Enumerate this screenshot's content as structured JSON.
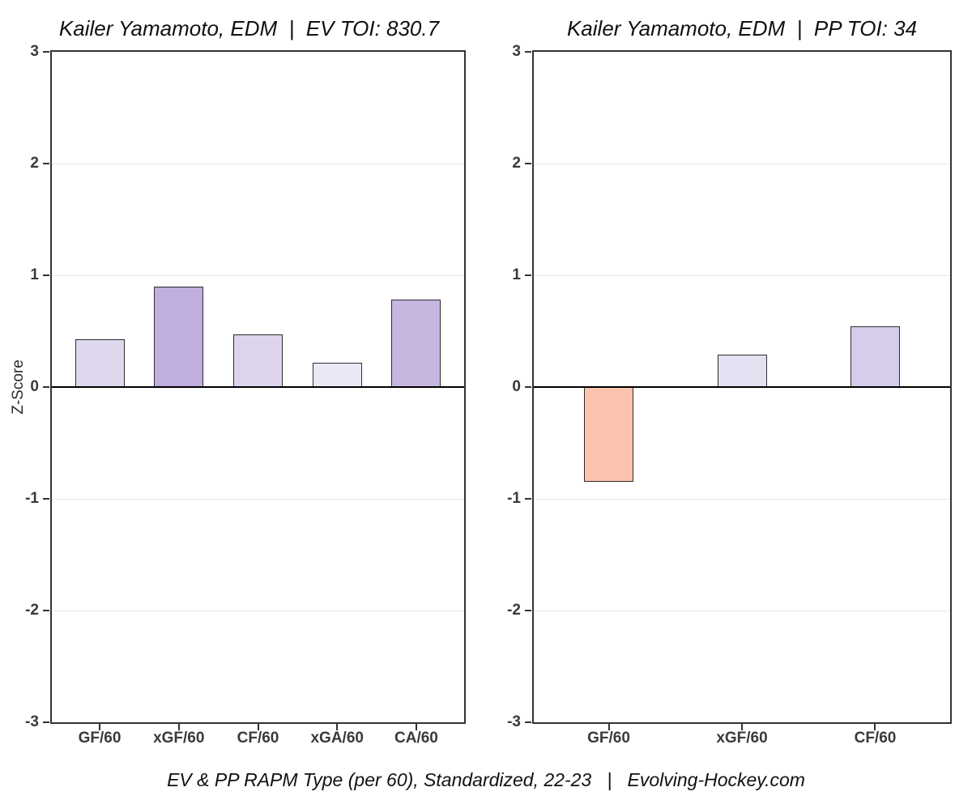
{
  "figure": {
    "ylabel": "Z-Score",
    "caption": "EV & PP RAPM Type (per 60), Standardized, 22-23   |   Evolving-Hockey.com",
    "background_color": "#ffffff",
    "panel_border_color": "#333333",
    "grid_color": "#e7e7e7",
    "zero_line_color": "#000000",
    "axis_text_color": "#3a3a3a"
  },
  "chart_data": [
    {
      "type": "bar",
      "title": "Kailer Yamamoto, EDM  |  EV TOI: 830.7",
      "categories": [
        "GF/60",
        "xGF/60",
        "CF/60",
        "xGA/60",
        "CA/60"
      ],
      "values": [
        0.43,
        0.9,
        0.47,
        0.22,
        0.78
      ],
      "bar_colors": [
        "#ded7ed",
        "#bfaede",
        "#ddd4ec",
        "#ebe7f4",
        "#c7b7e0"
      ],
      "ylabel": "Z-Score",
      "xlabel": "",
      "ylim": [
        -3,
        3
      ],
      "yticks": [
        3,
        2,
        1,
        0,
        -1,
        -2,
        -3
      ],
      "grid": "horizontal-major",
      "legend": "none"
    },
    {
      "type": "bar",
      "title": "Kailer Yamamoto, EDM  |  PP TOI: 34",
      "categories": [
        "GF/60",
        "xGF/60",
        "CF/60"
      ],
      "values": [
        -0.85,
        0.29,
        0.54
      ],
      "bar_colors": [
        "#fcc4b0",
        "#e5e0f1",
        "#d5cde9"
      ],
      "ylabel": "Z-Score",
      "xlabel": "",
      "ylim": [
        -3,
        3
      ],
      "yticks": [
        3,
        2,
        1,
        0,
        -1,
        -2,
        -3
      ],
      "grid": "horizontal-major",
      "legend": "none"
    }
  ]
}
